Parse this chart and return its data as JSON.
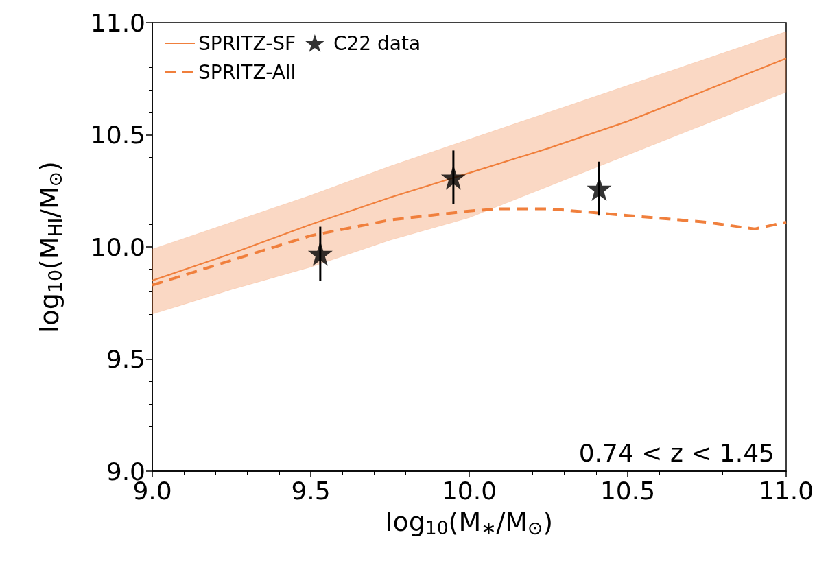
{
  "chart_data": {
    "type": "line",
    "xlabel": "log$_{10}$(M$_{∗}$/M$_{⊙}$)",
    "ylabel": "log$_{10}$(M$_{HI}$/M$_{⊙}$)",
    "annotations": [
      "0.74 < z < 1.45"
    ],
    "xlim": [
      9,
      11
    ],
    "xticks": [
      {
        "value": 9,
        "label": "9.0"
      },
      {
        "value": 9.5,
        "label": "9.5"
      },
      {
        "value": 10,
        "label": "10.0"
      },
      {
        "value": 10.5,
        "label": "10.5"
      },
      {
        "value": 11,
        "label": "11.0"
      }
    ],
    "ylim": [
      9,
      11
    ],
    "yticks": [
      {
        "value": 9,
        "label": "9.0"
      },
      {
        "value": 9.5,
        "label": "9.5"
      },
      {
        "value": 10,
        "label": "10.0"
      },
      {
        "value": 10.5,
        "label": "10.5"
      },
      {
        "value": 11,
        "label": "11.0"
      }
    ],
    "grid": false,
    "legend": "top left",
    "series": [
      {
        "name": "SPRITZ-SF",
        "color": "#f07f3c",
        "line_style": "solid",
        "marker": "none",
        "x": [
          9,
          9.25,
          9.5,
          9.75,
          10,
          10.25,
          10.5,
          10.75,
          11
        ],
        "values": [
          9.85,
          9.97,
          10.1,
          10.22,
          10.33,
          10.44,
          10.56,
          10.7,
          10.84
        ],
        "lower": [
          9.7,
          9.81,
          9.91,
          10.03,
          10.13,
          10.27,
          10.41,
          10.55,
          10.69
        ],
        "upper": [
          9.99,
          10.11,
          10.23,
          10.36,
          10.48,
          10.6,
          10.72,
          10.84,
          10.96
        ]
      },
      {
        "name": "C22 data",
        "type": "scatter",
        "color": "#000000",
        "marker": "star",
        "x": [
          9.53,
          9.95,
          10.41
        ],
        "values": [
          9.97,
          10.31,
          10.26
        ],
        "errors": [
          0.12,
          0.12,
          0.12
        ]
      },
      {
        "name": "SPRITZ-All",
        "color": "#f07f3c",
        "line_style": "dashed",
        "marker": "none",
        "x": [
          9,
          9.25,
          9.5,
          9.75,
          10,
          10.1,
          10.25,
          10.5,
          10.75,
          10.9,
          11
        ],
        "values": [
          9.83,
          9.94,
          10.05,
          10.12,
          10.16,
          10.17,
          10.17,
          10.14,
          10.11,
          10.08,
          10.11
        ]
      }
    ]
  }
}
